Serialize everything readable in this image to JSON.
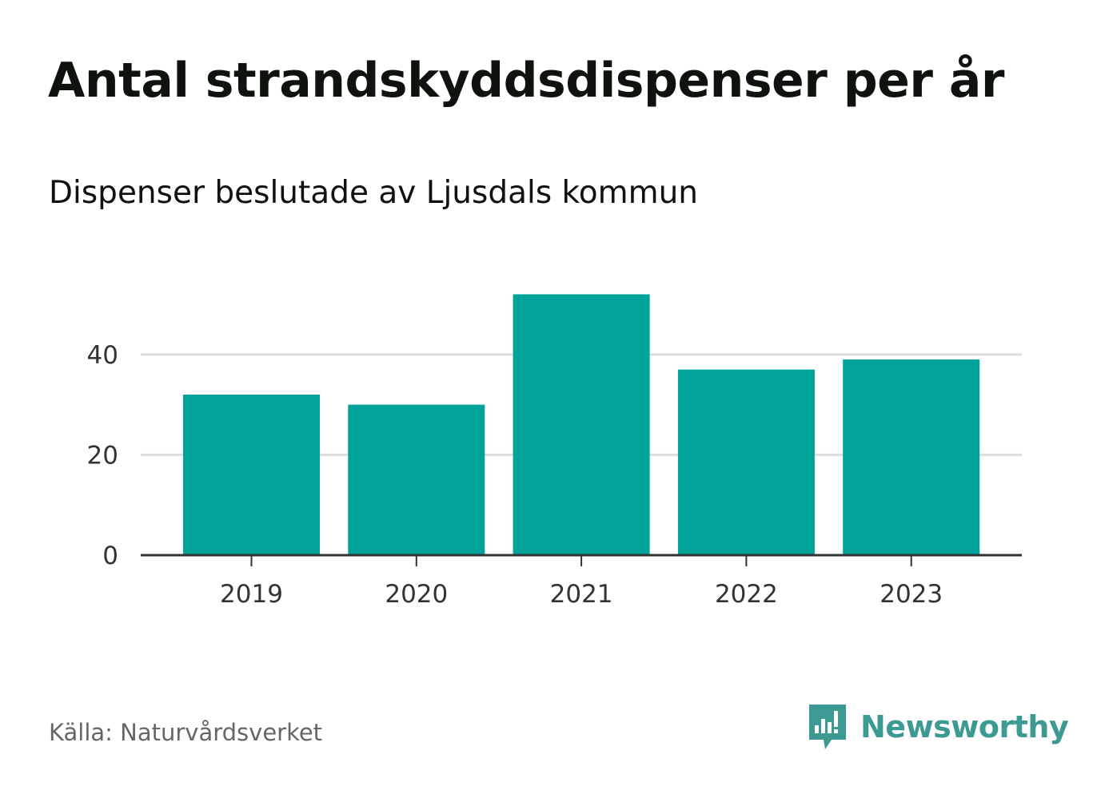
{
  "title": "Antal strandskyddsdispenser per år",
  "subtitle": "Dispenser beslutade av Ljusdals kommun",
  "source": "Källa: Naturvårdsverket",
  "brand": {
    "name": "Newsworthy",
    "icon": "bar-chart-speech-bubble-icon"
  },
  "colors": {
    "bar": "#00a39a",
    "grid": "#dddddd",
    "axis": "#333333",
    "brand": "#3d9a92"
  },
  "chart_data": {
    "type": "bar",
    "title": "Antal strandskyddsdispenser per år",
    "subtitle": "Dispenser beslutade av Ljusdals kommun",
    "categories": [
      "2019",
      "2020",
      "2021",
      "2022",
      "2023"
    ],
    "values": [
      32,
      30,
      52,
      37,
      39
    ],
    "xlabel": "",
    "ylabel": "",
    "ylim": [
      0,
      52
    ],
    "yticks": [
      0,
      20,
      40
    ],
    "grid": true,
    "legend": "none"
  }
}
